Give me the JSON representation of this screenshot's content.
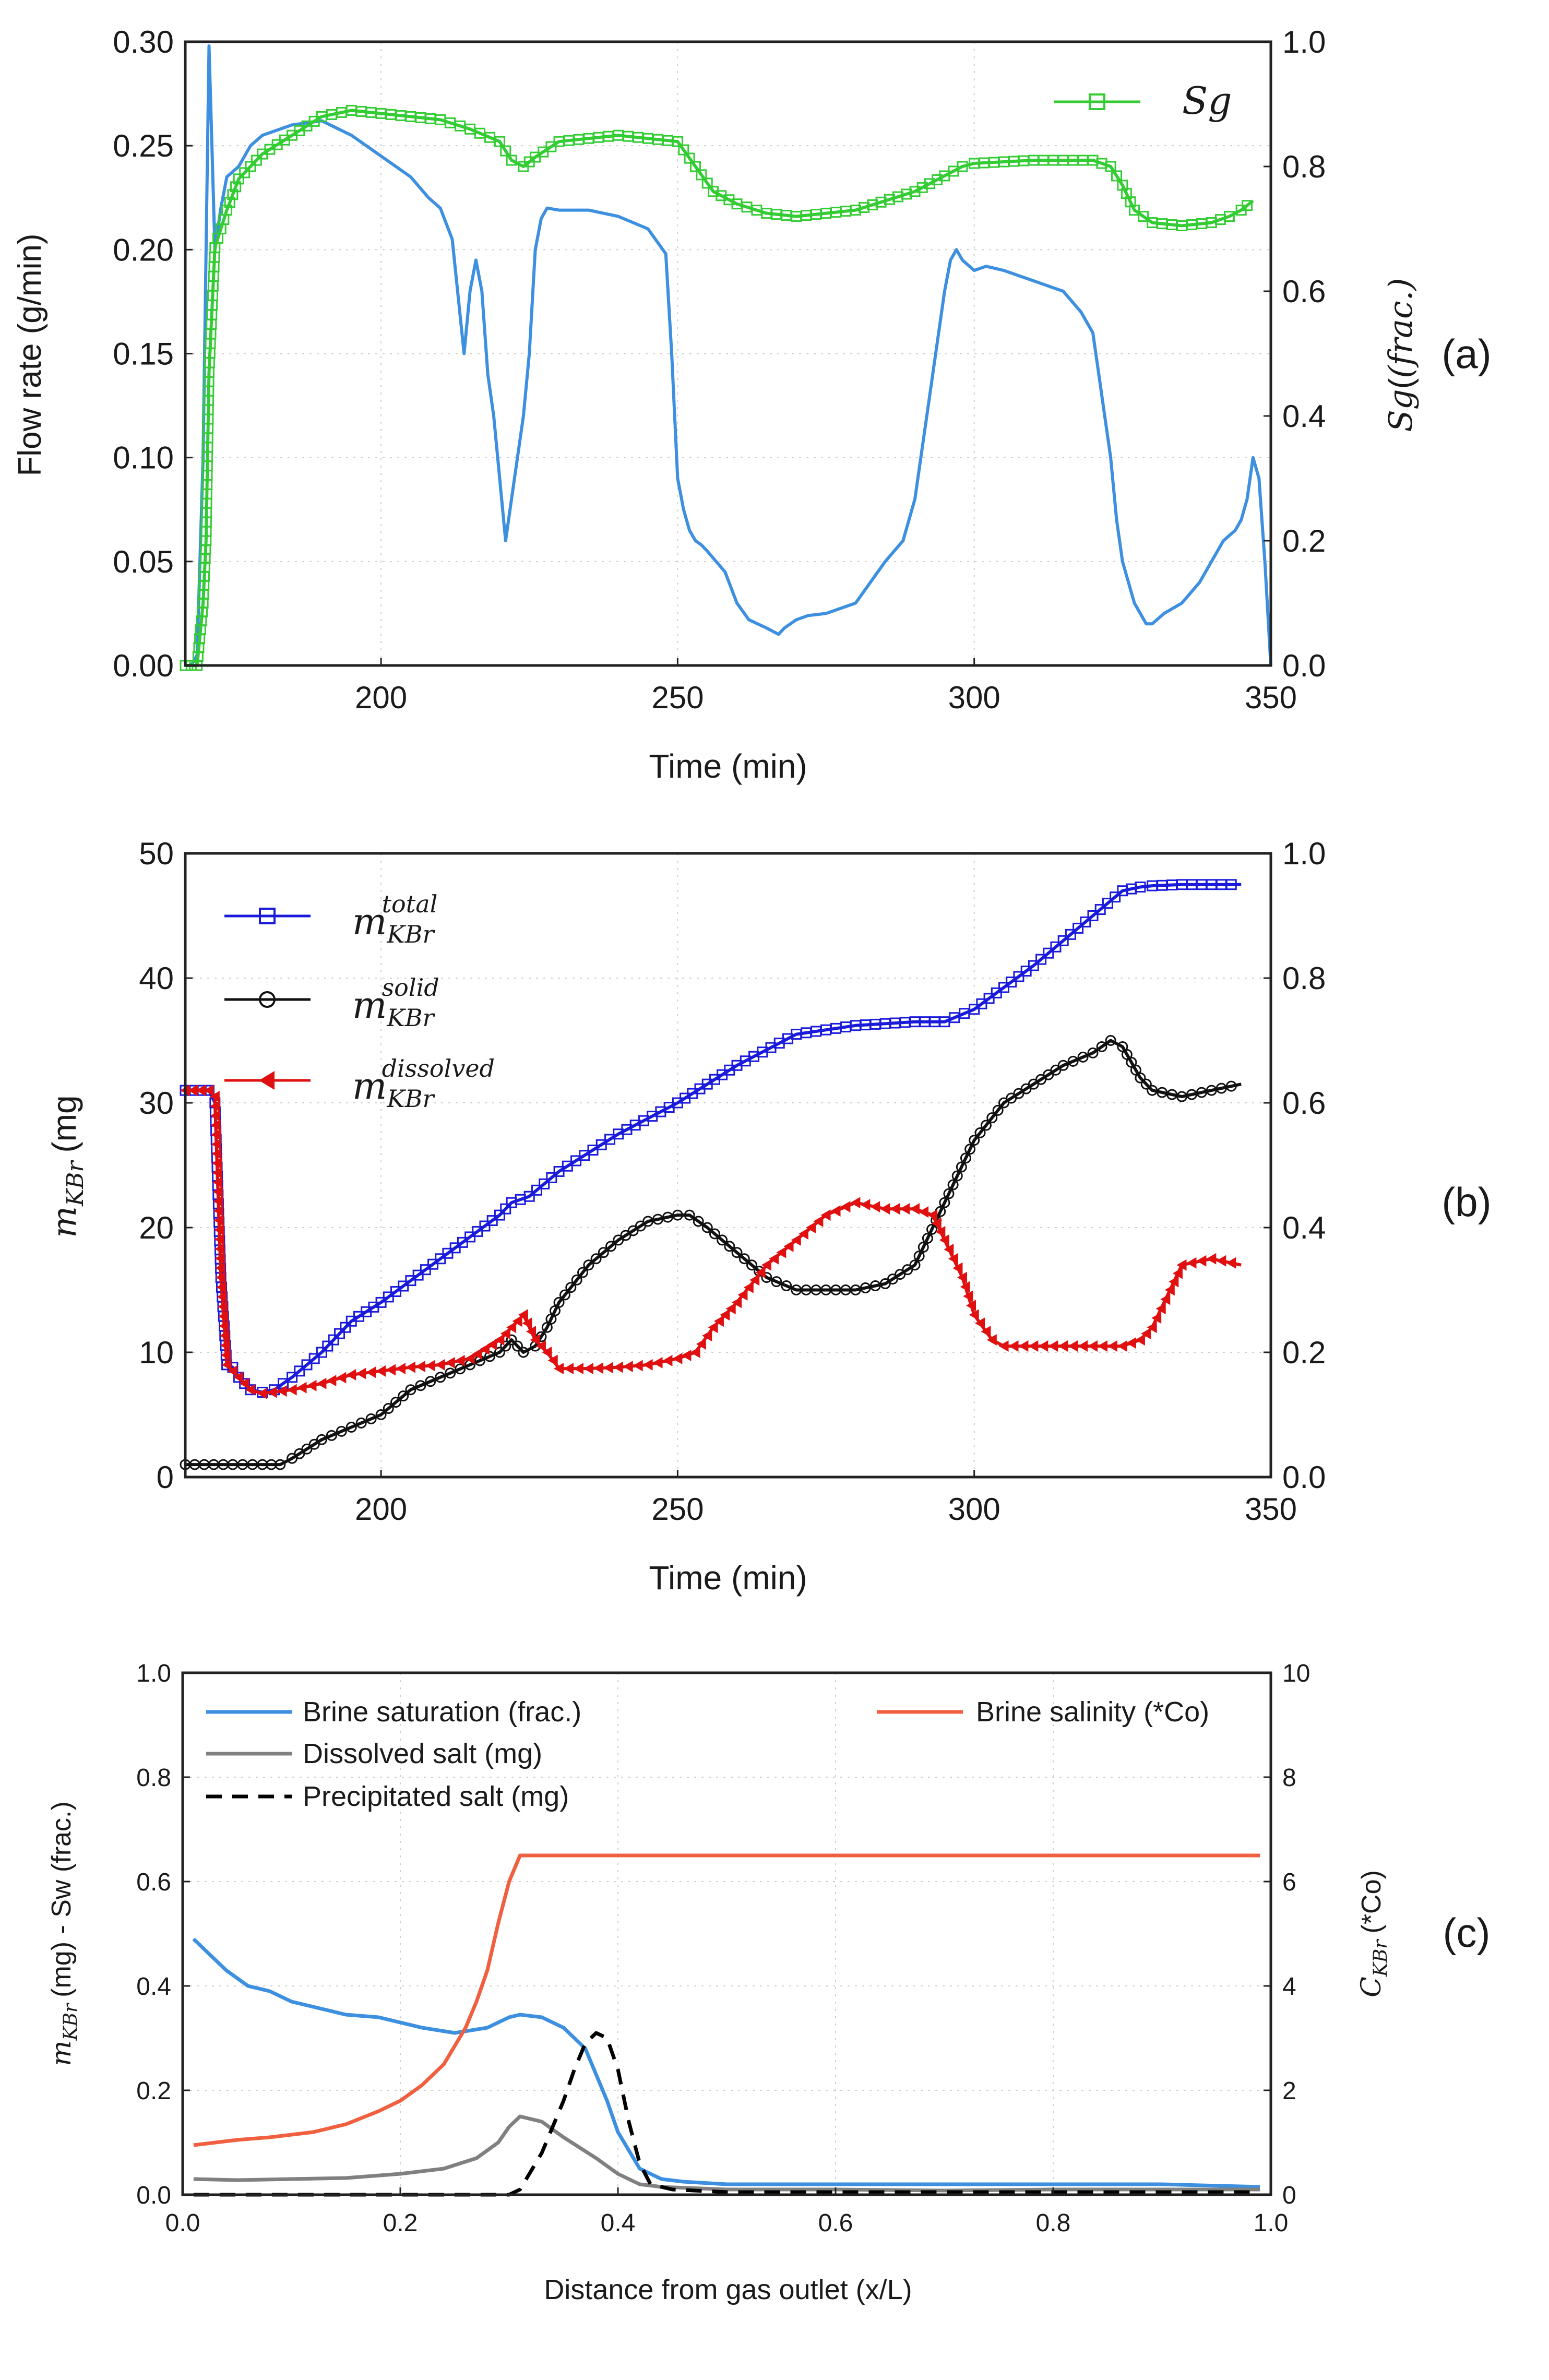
{
  "chart_data": [
    {
      "id": "a",
      "type": "line",
      "panel_label": "(a)",
      "xlabel": "Time (min)",
      "ylabel": "Flow rate (g/min)",
      "y2label": "Sg(frac.)",
      "xlim": [
        167,
        350
      ],
      "ylim": [
        0,
        0.3
      ],
      "y2lim": [
        0,
        1.0
      ],
      "xticks": [
        200,
        250,
        300,
        350
      ],
      "yticks": [
        0.0,
        0.05,
        0.1,
        0.15,
        0.2,
        0.25,
        0.3
      ],
      "y2ticks": [
        0.0,
        0.2,
        0.4,
        0.6,
        0.8,
        1.0
      ],
      "grid": true,
      "legend": {
        "placement": "top-right",
        "entries": [
          "Sg"
        ]
      },
      "series": [
        {
          "axis": "left",
          "color": "#3d8fe0",
          "marker": "none",
          "x": [
            167,
            168,
            169,
            170,
            171,
            172,
            173,
            174,
            176,
            178,
            180,
            185,
            190,
            195,
            200,
            205,
            208,
            210,
            212,
            214,
            215,
            216,
            217,
            218,
            219,
            220,
            221,
            222,
            223,
            224,
            225,
            226,
            227,
            228,
            230,
            235,
            240,
            245,
            248,
            249,
            250,
            251,
            252,
            253,
            254,
            255,
            258,
            260,
            262,
            265,
            267,
            268,
            270,
            272,
            275,
            280,
            285,
            288,
            290,
            292,
            294,
            295,
            296,
            297,
            298,
            300,
            302,
            305,
            310,
            315,
            318,
            320,
            321,
            322,
            323,
            324,
            325,
            326,
            327,
            328,
            329,
            330,
            332,
            335,
            338,
            340,
            342,
            344,
            345,
            346,
            347,
            348,
            349,
            350
          ],
          "y": [
            0,
            0,
            0.005,
            0.1,
            0.298,
            0.2,
            0.22,
            0.235,
            0.24,
            0.25,
            0.255,
            0.26,
            0.262,
            0.255,
            0.245,
            0.235,
            0.225,
            0.22,
            0.205,
            0.15,
            0.18,
            0.195,
            0.18,
            0.14,
            0.12,
            0.09,
            0.06,
            0.08,
            0.1,
            0.12,
            0.15,
            0.2,
            0.215,
            0.22,
            0.219,
            0.219,
            0.216,
            0.21,
            0.198,
            0.15,
            0.09,
            0.075,
            0.065,
            0.06,
            0.058,
            0.055,
            0.045,
            0.03,
            0.022,
            0.018,
            0.015,
            0.018,
            0.022,
            0.024,
            0.025,
            0.03,
            0.05,
            0.06,
            0.08,
            0.12,
            0.16,
            0.18,
            0.195,
            0.2,
            0.195,
            0.19,
            0.192,
            0.19,
            0.185,
            0.18,
            0.17,
            0.16,
            0.14,
            0.12,
            0.1,
            0.07,
            0.05,
            0.04,
            0.03,
            0.025,
            0.02,
            0.02,
            0.025,
            0.03,
            0.04,
            0.05,
            0.06,
            0.065,
            0.07,
            0.08,
            0.1,
            0.09,
            0.05,
            0
          ]
        },
        {
          "axis": "right",
          "name": "Sg",
          "color": "#33cc33",
          "marker": "square",
          "x": [
            167,
            168,
            169,
            170,
            170.5,
            171,
            172,
            173,
            174,
            176,
            178,
            180,
            185,
            190,
            195,
            200,
            210,
            215,
            220,
            222,
            224,
            226,
            230,
            240,
            250,
            253,
            256,
            260,
            265,
            270,
            280,
            290,
            295,
            298,
            300,
            310,
            320,
            323,
            325,
            327,
            330,
            335,
            340,
            343,
            345,
            347
          ],
          "y": [
            0,
            0,
            0,
            0.1,
            0.2,
            0.47,
            0.67,
            0.7,
            0.73,
            0.78,
            0.8,
            0.82,
            0.85,
            0.88,
            0.89,
            0.885,
            0.875,
            0.86,
            0.84,
            0.81,
            0.8,
            0.815,
            0.84,
            0.85,
            0.84,
            0.8,
            0.76,
            0.74,
            0.725,
            0.72,
            0.73,
            0.76,
            0.785,
            0.8,
            0.805,
            0.81,
            0.81,
            0.8,
            0.77,
            0.73,
            0.71,
            0.705,
            0.71,
            0.72,
            0.73,
            0.745
          ]
        }
      ]
    },
    {
      "id": "b",
      "type": "line",
      "panel_label": "(b)",
      "xlabel": "Time (min)",
      "ylabel": "m_KBr (mg",
      "xlim": [
        167,
        350
      ],
      "ylim": [
        0,
        50
      ],
      "y2lim": [
        0,
        1.0
      ],
      "xticks": [
        200,
        250,
        300,
        350
      ],
      "yticks": [
        0,
        10,
        20,
        30,
        40,
        50
      ],
      "y2ticks": [
        0.0,
        0.2,
        0.4,
        0.6,
        0.8,
        1.0
      ],
      "grid": true,
      "legend": {
        "placement": "top-left",
        "entries": [
          "m_KBr^total",
          "m_KBr^solid",
          "m_KBr^dissolved"
        ]
      },
      "series": [
        {
          "axis": "left",
          "name": "m_KBr^total",
          "color": "#1a1adb",
          "marker": "square",
          "x": [
            167,
            171,
            172,
            173,
            174,
            175,
            176,
            178,
            180,
            182,
            185,
            190,
            195,
            200,
            210,
            220,
            222,
            225,
            230,
            240,
            250,
            255,
            260,
            270,
            280,
            290,
            295,
            300,
            310,
            320,
            325,
            328,
            330,
            335,
            340,
            345
          ],
          "y": [
            31,
            31,
            30,
            16,
            9,
            8.8,
            8,
            7,
            6.8,
            7,
            8,
            10,
            12.5,
            14,
            17.5,
            21,
            22,
            22.5,
            24.5,
            27.5,
            30,
            31.5,
            33,
            35.5,
            36.2,
            36.5,
            36.5,
            37.5,
            41,
            45,
            47,
            47.3,
            47.4,
            47.5,
            47.5,
            47.5
          ]
        },
        {
          "axis": "left",
          "name": "m_KBr^solid",
          "color": "#111111",
          "marker": "circle",
          "x": [
            167,
            175,
            180,
            183,
            185,
            190,
            195,
            200,
            205,
            210,
            215,
            220,
            222,
            224,
            226,
            228,
            230,
            235,
            240,
            245,
            250,
            252,
            255,
            260,
            265,
            270,
            275,
            280,
            285,
            290,
            295,
            300,
            305,
            310,
            315,
            320,
            323,
            325,
            328,
            330,
            335,
            340,
            345
          ],
          "y": [
            1,
            1,
            1,
            1,
            1.5,
            3,
            4,
            5,
            7,
            8,
            9,
            10,
            11,
            10,
            10.5,
            12,
            14,
            17,
            19,
            20.5,
            21,
            21,
            20,
            18,
            16,
            15,
            15,
            15,
            15.5,
            17,
            22,
            27,
            30,
            31.5,
            33,
            34,
            35,
            34.5,
            32,
            31,
            30.5,
            31,
            31.5
          ]
        },
        {
          "axis": "left",
          "name": "m_KBr^dissolved",
          "color": "#e01010",
          "marker": "triangle-left",
          "x": [
            167,
            171,
            172,
            173,
            174,
            176,
            178,
            180,
            185,
            190,
            195,
            200,
            205,
            210,
            215,
            220,
            222,
            224,
            226,
            228,
            230,
            235,
            240,
            245,
            250,
            253,
            256,
            260,
            265,
            270,
            275,
            280,
            285,
            290,
            293,
            295,
            298,
            300,
            303,
            305,
            310,
            315,
            320,
            325,
            328,
            330,
            333,
            335,
            340,
            345
          ],
          "y": [
            31,
            31,
            30.5,
            16,
            9,
            8,
            7,
            6.7,
            7,
            7.5,
            8.2,
            8.5,
            8.8,
            9,
            9.5,
            11,
            12,
            13,
            11,
            10,
            8.7,
            8.7,
            8.8,
            9,
            9.5,
            10,
            12,
            14,
            17,
            19,
            21,
            22,
            21.5,
            21.5,
            21,
            19,
            16,
            13,
            11,
            10.5,
            10.5,
            10.5,
            10.5,
            10.5,
            11,
            12,
            15,
            17,
            17.5,
            17
          ]
        }
      ]
    },
    {
      "id": "c",
      "type": "line",
      "panel_label": "(c)",
      "xlabel": "Distance from gas outlet (x/L)",
      "ylabel": "m_KBr (mg) - Sw (frac.)",
      "y2label": "C_KBr (*Co)",
      "xlim": [
        0,
        1.0
      ],
      "ylim": [
        0,
        1.0
      ],
      "y2lim": [
        0,
        10
      ],
      "xticks": [
        0.0,
        0.2,
        0.4,
        0.6,
        0.8,
        1.0
      ],
      "yticks": [
        0.0,
        0.2,
        0.4,
        0.6,
        0.8,
        1.0
      ],
      "y2ticks": [
        0,
        2,
        4,
        6,
        8,
        10
      ],
      "grid": true,
      "legend": {
        "placement": "top",
        "entries": [
          "Brine saturation (frac.)",
          "Dissolved salt (mg)",
          "Precipitated salt (mg)",
          "Brine salinity (*Co)"
        ]
      },
      "series": [
        {
          "axis": "left",
          "name": "Brine saturation (frac.)",
          "color": "#3d8fe0",
          "dash": "solid",
          "x": [
            0.01,
            0.02,
            0.04,
            0.06,
            0.08,
            0.1,
            0.12,
            0.15,
            0.18,
            0.2,
            0.22,
            0.25,
            0.28,
            0.3,
            0.31,
            0.33,
            0.35,
            0.37,
            0.39,
            0.4,
            0.42,
            0.44,
            0.46,
            0.5,
            0.6,
            0.7,
            0.8,
            0.9,
            0.99
          ],
          "y": [
            0.49,
            0.47,
            0.43,
            0.4,
            0.39,
            0.37,
            0.36,
            0.345,
            0.34,
            0.33,
            0.32,
            0.31,
            0.32,
            0.34,
            0.345,
            0.34,
            0.32,
            0.28,
            0.18,
            0.12,
            0.05,
            0.03,
            0.025,
            0.02,
            0.02,
            0.02,
            0.02,
            0.02,
            0.015
          ]
        },
        {
          "axis": "left",
          "name": "Dissolved salt (mg)",
          "color": "#808080",
          "dash": "solid",
          "x": [
            0.01,
            0.05,
            0.1,
            0.15,
            0.2,
            0.24,
            0.27,
            0.29,
            0.3,
            0.31,
            0.33,
            0.35,
            0.38,
            0.4,
            0.42,
            0.44,
            0.5,
            0.6,
            0.7,
            0.8,
            0.9,
            0.99
          ],
          "y": [
            0.03,
            0.028,
            0.03,
            0.032,
            0.04,
            0.05,
            0.07,
            0.1,
            0.13,
            0.15,
            0.14,
            0.11,
            0.07,
            0.04,
            0.02,
            0.015,
            0.01,
            0.01,
            0.008,
            0.01,
            0.01,
            0.01
          ]
        },
        {
          "axis": "left",
          "name": "Precipitated salt (mg)",
          "color": "#000000",
          "dash": "dashed",
          "x": [
            0.01,
            0.2,
            0.3,
            0.31,
            0.33,
            0.35,
            0.36,
            0.37,
            0.38,
            0.39,
            0.4,
            0.41,
            0.42,
            0.43,
            0.45,
            0.5,
            0.6,
            0.7,
            0.8,
            0.9,
            0.99
          ],
          "y": [
            0,
            0,
            0,
            0.01,
            0.08,
            0.18,
            0.24,
            0.29,
            0.31,
            0.3,
            0.24,
            0.14,
            0.06,
            0.02,
            0.01,
            0.005,
            0.005,
            0.005,
            0.005,
            0.005,
            0.005
          ]
        },
        {
          "axis": "right",
          "name": "Brine salinity (*Co)",
          "color": "#f06040",
          "dash": "solid",
          "x": [
            0.01,
            0.03,
            0.05,
            0.08,
            0.1,
            0.12,
            0.15,
            0.18,
            0.2,
            0.22,
            0.24,
            0.26,
            0.27,
            0.28,
            0.29,
            0.3,
            0.31,
            0.4,
            0.6,
            0.8,
            0.99
          ],
          "y": [
            0.95,
            1.0,
            1.05,
            1.1,
            1.15,
            1.2,
            1.35,
            1.6,
            1.8,
            2.1,
            2.5,
            3.2,
            3.7,
            4.3,
            5.2,
            6.0,
            6.5,
            6.5,
            6.5,
            6.5,
            6.5
          ]
        }
      ]
    }
  ],
  "panel_labels": {
    "a": "(a)",
    "b": "(b)",
    "c": "(c)"
  },
  "legend_texts": {
    "a_sg": "Sg",
    "b_total_base": "m",
    "b_total_sub": "KBr",
    "b_total_sup": "total",
    "b_solid_base": "m",
    "b_solid_sub": "KBr",
    "b_solid_sup": "solid",
    "b_diss_base": "m",
    "b_diss_sub": "KBr",
    "b_diss_sup": "dissolved",
    "c_sat": "Brine saturation (frac.)",
    "c_diss": "Dissolved salt (mg)",
    "c_prec": "Precipitated salt (mg)",
    "c_sal": "Brine salinity (*Co)"
  },
  "axis_titles": {
    "a_x": "Time (min)",
    "a_y": "Flow rate (g/min)",
    "a_y2_base": "Sg",
    "a_y2_rest": "(frac.)",
    "b_x": "Time (min)",
    "b_y_base": "m",
    "b_y_sub": "KBr",
    "b_y_rest": "(mg",
    "c_x": "Distance from gas outlet (x/L)",
    "c_y_base": "m",
    "c_y_sub": "KBr",
    "c_y_rest": "(mg) - Sw (frac.)",
    "c_y2_base": "C",
    "c_y2_sub": "KBr",
    "c_y2_rest": "(*Co)"
  }
}
